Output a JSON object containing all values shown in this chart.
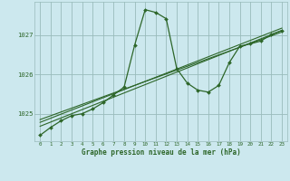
{
  "title": "Graphe pression niveau de la mer (hPa)",
  "background_color": "#cce8ee",
  "grid_color": "#99bbbb",
  "line_color": "#2d6629",
  "xlim": [
    -0.5,
    23.5
  ],
  "ylim": [
    1024.3,
    1027.85
  ],
  "yticks": [
    1025,
    1026,
    1027
  ],
  "xticks": [
    0,
    1,
    2,
    3,
    4,
    5,
    6,
    7,
    8,
    9,
    10,
    11,
    12,
    13,
    14,
    15,
    16,
    17,
    18,
    19,
    20,
    21,
    22,
    23
  ],
  "main_series": {
    "x": [
      0,
      1,
      2,
      3,
      4,
      5,
      6,
      7,
      8,
      9,
      10,
      11,
      12,
      13,
      14,
      15,
      16,
      17,
      18,
      19,
      20,
      21,
      22,
      23
    ],
    "y": [
      1024.45,
      1024.65,
      1024.82,
      1024.95,
      1025.0,
      1025.12,
      1025.28,
      1025.48,
      1025.68,
      1026.75,
      1027.65,
      1027.58,
      1027.42,
      1026.15,
      1025.78,
      1025.6,
      1025.55,
      1025.72,
      1026.3,
      1026.72,
      1026.78,
      1026.85,
      1027.02,
      1027.12
    ]
  },
  "straight_lines": [
    {
      "x": [
        0,
        23
      ],
      "y": [
        1024.68,
        1027.12
      ]
    },
    {
      "x": [
        0,
        23
      ],
      "y": [
        1024.78,
        1027.18
      ]
    },
    {
      "x": [
        0,
        23
      ],
      "y": [
        1024.85,
        1027.08
      ]
    }
  ]
}
